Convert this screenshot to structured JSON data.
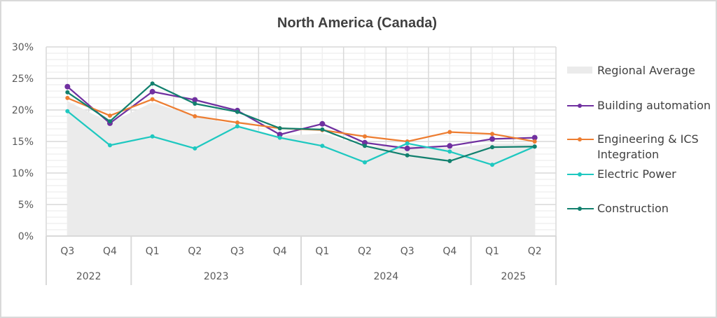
{
  "chart_data": {
    "type": "line",
    "title": "North America (Canada)",
    "xlabel": "",
    "ylabel": "",
    "ylim": [
      0,
      30
    ],
    "yticks": [
      "0%",
      "5%",
      "10%",
      "15%",
      "20%",
      "25%",
      "30%"
    ],
    "ytick_values": [
      0,
      5,
      10,
      15,
      20,
      25,
      30
    ],
    "grid": true,
    "legend_position": "right",
    "categories": [
      "Q3",
      "Q4",
      "Q1",
      "Q2",
      "Q3",
      "Q4",
      "Q1",
      "Q2",
      "Q3",
      "Q4",
      "Q1",
      "Q2"
    ],
    "groups": [
      {
        "label": "2022",
        "span": 2
      },
      {
        "label": "2023",
        "span": 4
      },
      {
        "label": "2024",
        "span": 4
      },
      {
        "label": "2025",
        "span": 2
      }
    ],
    "series": [
      {
        "name": "Regional Average",
        "kind": "area",
        "color": "#ebebeb",
        "values": [
          21.4,
          18.0,
          21.2,
          19.0,
          17.6,
          15.8,
          16.3,
          14.2,
          14.4,
          13.9,
          14.7,
          14.7
        ]
      },
      {
        "name": "Building automation",
        "kind": "line",
        "color": "#7030a0",
        "values": [
          23.7,
          17.9,
          22.9,
          21.6,
          19.9,
          16.1,
          17.8,
          14.8,
          13.9,
          14.3,
          15.4,
          15.6
        ]
      },
      {
        "name": "Engineering & ICS Integration",
        "kind": "line",
        "color": "#ed7d31",
        "values": [
          21.9,
          19.1,
          21.7,
          19.0,
          18.0,
          17.1,
          16.8,
          15.8,
          15.0,
          16.5,
          16.2,
          15.0
        ]
      },
      {
        "name": "Electric Power",
        "kind": "line",
        "color": "#1ec8c0",
        "values": [
          19.8,
          14.4,
          15.8,
          13.9,
          17.4,
          15.6,
          14.3,
          11.7,
          14.7,
          13.4,
          11.3,
          14.2
        ]
      },
      {
        "name": "Construction",
        "kind": "line",
        "color": "#12806e",
        "values": [
          22.8,
          18.2,
          24.2,
          21.0,
          19.7,
          17.1,
          16.9,
          14.3,
          12.8,
          11.9,
          14.1,
          14.2
        ]
      }
    ]
  }
}
